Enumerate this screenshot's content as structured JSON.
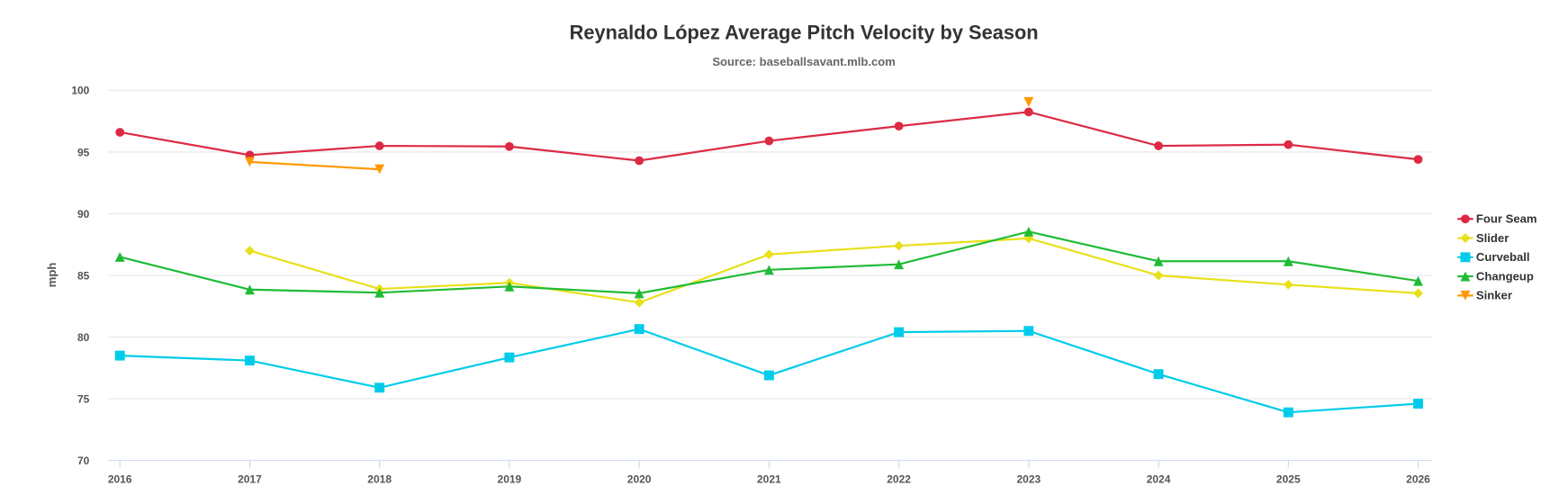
{
  "chart_data": {
    "type": "line",
    "title": "Reynaldo López Average Pitch Velocity by Season",
    "subtitle": "Source: baseballsavant.mlb.com",
    "xlabel": "",
    "ylabel": "mph",
    "ylim": [
      70,
      100
    ],
    "yticks": [
      "70",
      "75",
      "80",
      "85",
      "90",
      "95",
      "100"
    ],
    "grid": true,
    "legend_position": "right",
    "categories": [
      "2016",
      "2017",
      "2018",
      "2019",
      "2020",
      "2021",
      "2022",
      "2023",
      "2024",
      "2025",
      "2026"
    ],
    "series": [
      {
        "name": "Four Seam",
        "color": "#dc2a44",
        "marker": "circle",
        "values": [
          96.6,
          94.75,
          95.5,
          95.45,
          94.3,
          95.9,
          97.1,
          98.25,
          95.5,
          95.6,
          94.4
        ]
      },
      {
        "name": "Slider",
        "color": "#e8e019",
        "marker": "diamond",
        "values": [
          null,
          87.0,
          83.9,
          84.4,
          82.8,
          86.7,
          87.4,
          88.0,
          85.0,
          84.25,
          83.55
        ]
      },
      {
        "name": "Curveball",
        "color": "#00ccea",
        "marker": "square",
        "values": [
          78.5,
          78.1,
          75.9,
          78.35,
          80.65,
          76.9,
          80.4,
          80.5,
          77.0,
          73.9,
          74.6
        ]
      },
      {
        "name": "Changeup",
        "color": "#20bb35",
        "marker": "triangle",
        "values": [
          86.5,
          83.85,
          83.6,
          84.1,
          83.55,
          85.45,
          85.9,
          88.55,
          86.15,
          86.15,
          84.55
        ]
      },
      {
        "name": "Sinker",
        "color": "#ff9900",
        "marker": "triangle-down",
        "values": [
          null,
          94.2,
          93.6,
          null,
          null,
          null,
          null,
          99.05,
          null,
          null,
          null
        ]
      }
    ]
  }
}
